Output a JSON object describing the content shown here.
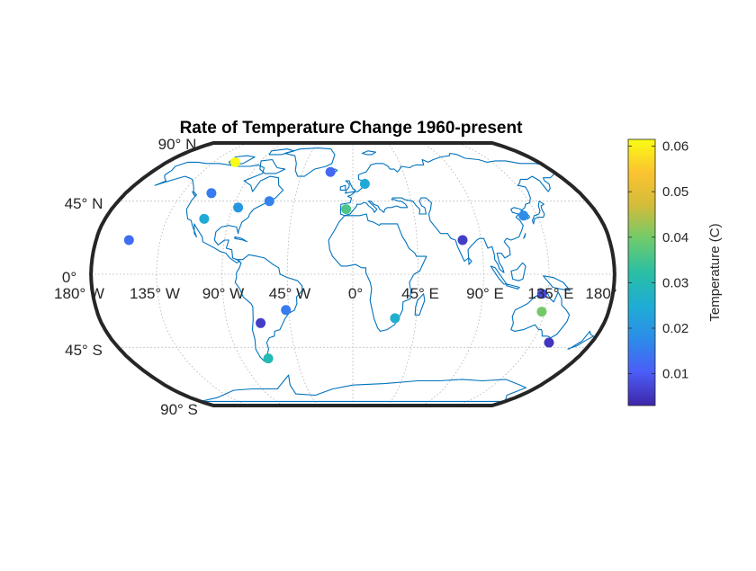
{
  "chart_data": {
    "type": "scatter",
    "projection": "robinson",
    "title": "Rate of Temperature Change 1960-present",
    "lat_labels": [
      "90° N",
      "45° N",
      "0°",
      "45° S",
      "90° S"
    ],
    "lon_labels": [
      "180° W",
      "135° W",
      "90° W",
      "45° W",
      "0°",
      "45° E",
      "90° E",
      "135° E",
      "180°"
    ],
    "colorbar": {
      "label": "Temperature (C)",
      "ticks": [
        "0.01",
        "0.02",
        "0.03",
        "0.04",
        "0.05",
        "0.06"
      ],
      "range": [
        0.003,
        0.0615
      ],
      "colormap": [
        "#3e26a8",
        "#4b5df7",
        "#2d8ce9",
        "#1eadd4",
        "#2abfa5",
        "#6ecb6c",
        "#d2bc3a",
        "#fbc330",
        "#f9fb15"
      ]
    },
    "grid": true,
    "points": [
      {
        "lon": -114,
        "lat": 71,
        "value": 0.0615
      },
      {
        "lon": -112,
        "lat": 50,
        "value": 0.015
      },
      {
        "lon": -108,
        "lat": 34,
        "value": 0.024
      },
      {
        "lon": -157,
        "lat": 21,
        "value": 0.013
      },
      {
        "lon": -86,
        "lat": 41,
        "value": 0.02
      },
      {
        "lon": -64,
        "lat": 45,
        "value": 0.016
      },
      {
        "lon": -20,
        "lat": 64,
        "value": 0.012
      },
      {
        "lon": -5,
        "lat": 40,
        "value": 0.036
      },
      {
        "lon": 10,
        "lat": 56,
        "value": 0.024
      },
      {
        "lon": 77,
        "lat": 21,
        "value": 0.006
      },
      {
        "lon": 125,
        "lat": 36,
        "value": 0.018
      },
      {
        "lon": 131,
        "lat": -12,
        "value": 0.008
      },
      {
        "lon": 133,
        "lat": -23,
        "value": 0.04
      },
      {
        "lon": 148,
        "lat": -42,
        "value": 0.005
      },
      {
        "lon": 30,
        "lat": -27,
        "value": 0.026
      },
      {
        "lon": -47,
        "lat": -22,
        "value": 0.015
      },
      {
        "lon": -66,
        "lat": -30,
        "value": 0.006
      },
      {
        "lon": -68,
        "lat": -52,
        "value": 0.03
      }
    ]
  }
}
